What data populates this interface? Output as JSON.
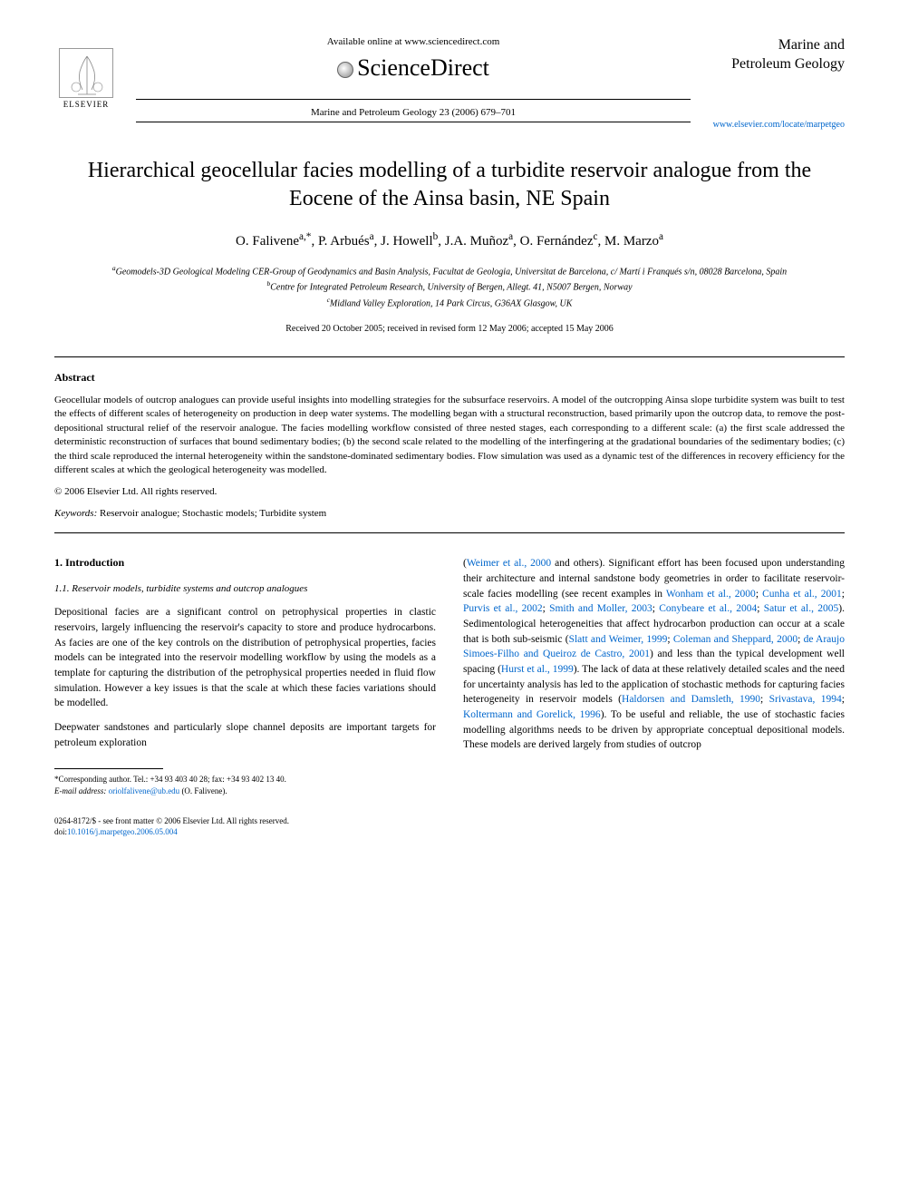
{
  "header": {
    "available_online": "Available online at www.sciencedirect.com",
    "sciencedirect": "ScienceDirect",
    "elsevier_label": "ELSEVIER",
    "journal_ref": "Marine and Petroleum Geology 23 (2006) 679–701",
    "journal_name_line1": "Marine and",
    "journal_name_line2": "Petroleum Geology",
    "journal_link": "www.elsevier.com/locate/marpetgeo"
  },
  "title": "Hierarchical geocellular facies modelling of a turbidite reservoir analogue from the Eocene of the Ainsa basin, NE Spain",
  "authors_html": "O. Falivene<sup>a,*</sup>, P. Arbués<sup>a</sup>, J. Howell<sup>b</sup>, J.A. Muñoz<sup>a</sup>, O. Fernández<sup>c</sup>, M. Marzo<sup>a</sup>",
  "affiliations": {
    "a": "Geomodels-3D Geological Modeling CER-Group of Geodynamics and Basin Analysis, Facultat de Geologia, Universitat de Barcelona, c/ Martí i Franqués s/n, 08028 Barcelona, Spain",
    "b": "Centre for Integrated Petroleum Research, University of Bergen, Allegt. 41, N5007 Bergen, Norway",
    "c": "Midland Valley Exploration, 14 Park Circus, G36AX Glasgow, UK"
  },
  "dates": "Received 20 October 2005; received in revised form 12 May 2006; accepted 15 May 2006",
  "abstract": {
    "heading": "Abstract",
    "text": "Geocellular models of outcrop analogues can provide useful insights into modelling strategies for the subsurface reservoirs. A model of the outcropping Ainsa slope turbidite system was built to test the effects of different scales of heterogeneity on production in deep water systems. The modelling began with a structural reconstruction, based primarily upon the outcrop data, to remove the post-depositional structural relief of the reservoir analogue. The facies modelling workflow consisted of three nested stages, each corresponding to a different scale: (a) the first scale addressed the deterministic reconstruction of surfaces that bound sedimentary bodies; (b) the second scale related to the modelling of the interfingering at the gradational boundaries of the sedimentary bodies; (c) the third scale reproduced the internal heterogeneity within the sandstone-dominated sedimentary bodies. Flow simulation was used as a dynamic test of the differences in recovery efficiency for the different scales at which the geological heterogeneity was modelled.",
    "copyright": "© 2006 Elsevier Ltd. All rights reserved."
  },
  "keywords": {
    "label": "Keywords:",
    "text": "Reservoir analogue; Stochastic models; Turbidite system"
  },
  "section1": {
    "heading": "1. Introduction",
    "sub_heading": "1.1. Reservoir models, turbidite systems and outcrop analogues",
    "para1": "Depositional facies are a significant control on petrophysical properties in clastic reservoirs, largely influencing the reservoir's capacity to store and produce hydrocarbons. As facies are one of the key controls on the distribution of petrophysical properties, facies models can be integrated into the reservoir modelling workflow by using the models as a template for capturing the distribution of the petrophysical properties needed in fluid flow simulation. However a key issues is that the scale at which these facies variations should be modelled.",
    "para2": "Deepwater sandstones and particularly slope channel deposits are important targets for petroleum exploration"
  },
  "col2": {
    "text_parts": [
      "(",
      "Weimer et al., 2000",
      " and others). Significant effort has been focused upon understanding their architecture and internal sandstone body geometries in order to facilitate reservoir-scale facies modelling (see recent examples in ",
      "Wonham et al., 2000",
      "; ",
      "Cunha et al., 2001",
      "; ",
      "Purvis et al., 2002",
      "; ",
      "Smith and Moller, 2003",
      "; ",
      "Conybeare et al., 2004",
      "; ",
      "Satur et al., 2005",
      "). Sedimentological heterogeneities that affect hydrocarbon production can occur at a scale that is both sub-seismic (",
      "Slatt and Weimer, 1999",
      "; ",
      "Coleman and Sheppard, 2000",
      "; ",
      "de Araujo Simoes-Filho and Queiroz de Castro, 2001",
      ") and less than the typical development well spacing (",
      "Hurst et al., 1999",
      "). The lack of data at these relatively detailed scales and the need for uncertainty analysis has led to the application of stochastic methods for capturing facies heterogeneity in reservoir models (",
      "Haldorsen and Damsleth, 1990",
      "; ",
      "Srivastava, 1994",
      "; ",
      "Koltermann and Gorelick, 1996",
      "). To be useful and reliable, the use of stochastic facies modelling algorithms needs to be driven by appropriate conceptual depositional models. These models are derived largely from studies of outcrop"
    ]
  },
  "footnote": {
    "corresponding": "*Corresponding author. Tel.: +34 93 403 40 28; fax: +34 93 402 13 40.",
    "email_label": "E-mail address:",
    "email": "oriolfalivene@ub.edu",
    "email_name": "(O. Falivene)."
  },
  "bottom": {
    "issn": "0264-8172/$ - see front matter © 2006 Elsevier Ltd. All rights reserved.",
    "doi_label": "doi:",
    "doi": "10.1016/j.marpetgeo.2006.05.004"
  },
  "colors": {
    "link": "#0066cc",
    "text": "#000000",
    "background": "#ffffff"
  }
}
